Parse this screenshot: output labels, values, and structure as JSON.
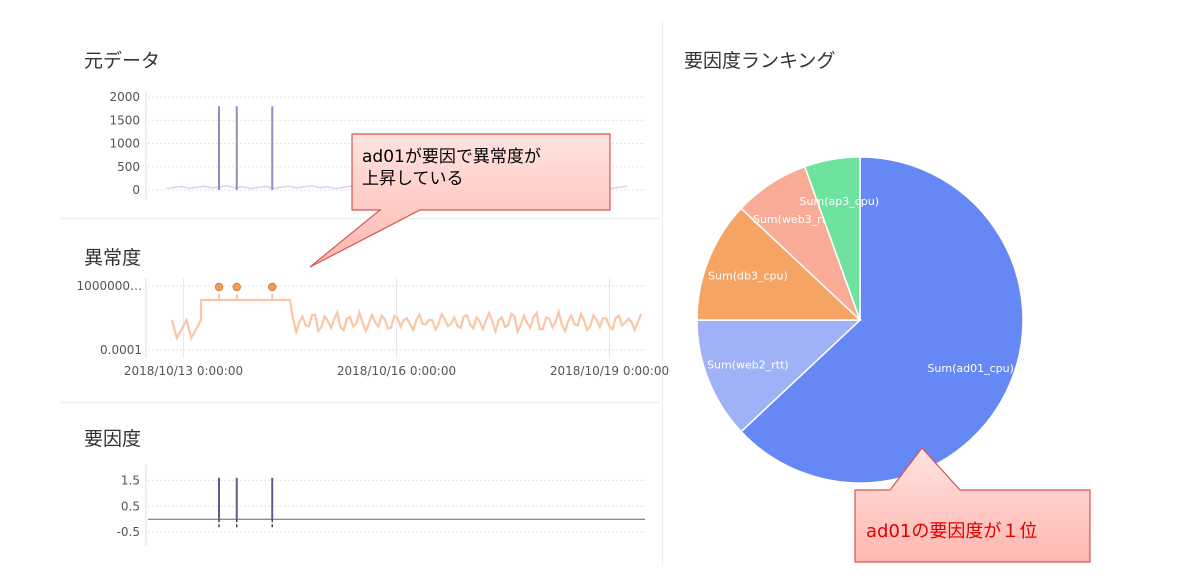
{
  "panels": {
    "raw": {
      "title": "元データ"
    },
    "anomaly": {
      "title": "異常度"
    },
    "factor": {
      "title": "要因度"
    },
    "ranking": {
      "title": "要因度ランキング"
    }
  },
  "callouts": {
    "anomaly_note_line1": "ad01が要因で異常度が",
    "anomaly_note_line2": "上昇している",
    "rank_note": "ad01の要因度が１位"
  },
  "colors": {
    "callout_fill": "#ffc9c4",
    "callout_border": "#d9534f",
    "rank_text": "#e00000",
    "raw_line": "#8a8fc0",
    "anomaly_line": "#f9c7a8",
    "anomaly_point": "#f39c55",
    "factor_line": "#5a5f8a"
  },
  "chart_data": [
    {
      "type": "line",
      "name": "raw",
      "ylim": [
        0,
        2000
      ],
      "yticks": [
        "2000",
        "1500",
        "1000",
        "500",
        "0"
      ],
      "ytick_values": [
        2000,
        1500,
        1000,
        500,
        0
      ],
      "x_range": [
        "2018/10/12 12:00",
        "2018/10/19 12:00"
      ],
      "spikes": [
        {
          "x": "2018/10/13 12:00",
          "y": 1800
        },
        {
          "x": "2018/10/13 18:00",
          "y": 1800
        },
        {
          "x": "2018/10/14 06:00",
          "y": 1800
        }
      ],
      "baseline_y": 30
    },
    {
      "type": "scatter",
      "name": "anomaly",
      "yscale": "log",
      "yticks": [
        "1000000…",
        "0.0001"
      ],
      "xticks": [
        "2018/10/13 0:00:00",
        "2018/10/16 0:00:00",
        "2018/10/19 0:00:00"
      ],
      "x_range": [
        "2018/10/12 12:00",
        "2018/10/19 12:00"
      ],
      "points": [
        {
          "x": "2018/10/13 12:00"
        },
        {
          "x": "2018/10/13 18:00"
        },
        {
          "x": "2018/10/14 06:00"
        }
      ]
    },
    {
      "type": "line",
      "name": "factor",
      "ylim": [
        -0.8,
        1.9
      ],
      "yticks": [
        "1.5",
        "0.5",
        "-0.5"
      ],
      "ytick_values": [
        1.5,
        0.5,
        -0.5
      ],
      "x_range": [
        "2018/10/12 12:00",
        "2018/10/19 12:00"
      ],
      "spikes": [
        {
          "x": "2018/10/13 12:00",
          "y": 1.6
        },
        {
          "x": "2018/10/13 18:00",
          "y": 1.6
        },
        {
          "x": "2018/10/14 06:00",
          "y": 1.6
        }
      ]
    },
    {
      "type": "pie",
      "name": "ranking",
      "slices": [
        {
          "label": "Sum(ad01_cpu)",
          "value": 63,
          "color": "#6688f5"
        },
        {
          "label": "Sum(web2_rtt)",
          "value": 12,
          "color": "#9fb1f7"
        },
        {
          "label": "Sum(db3_cpu)",
          "value": 12,
          "color": "#f6a463"
        },
        {
          "label": "Sum(web3_rtt)",
          "value": 7.5,
          "color": "#f8ac98"
        },
        {
          "label": "Sum(ap3_cpu)",
          "value": 5.5,
          "color": "#6ee3a0"
        }
      ]
    }
  ]
}
